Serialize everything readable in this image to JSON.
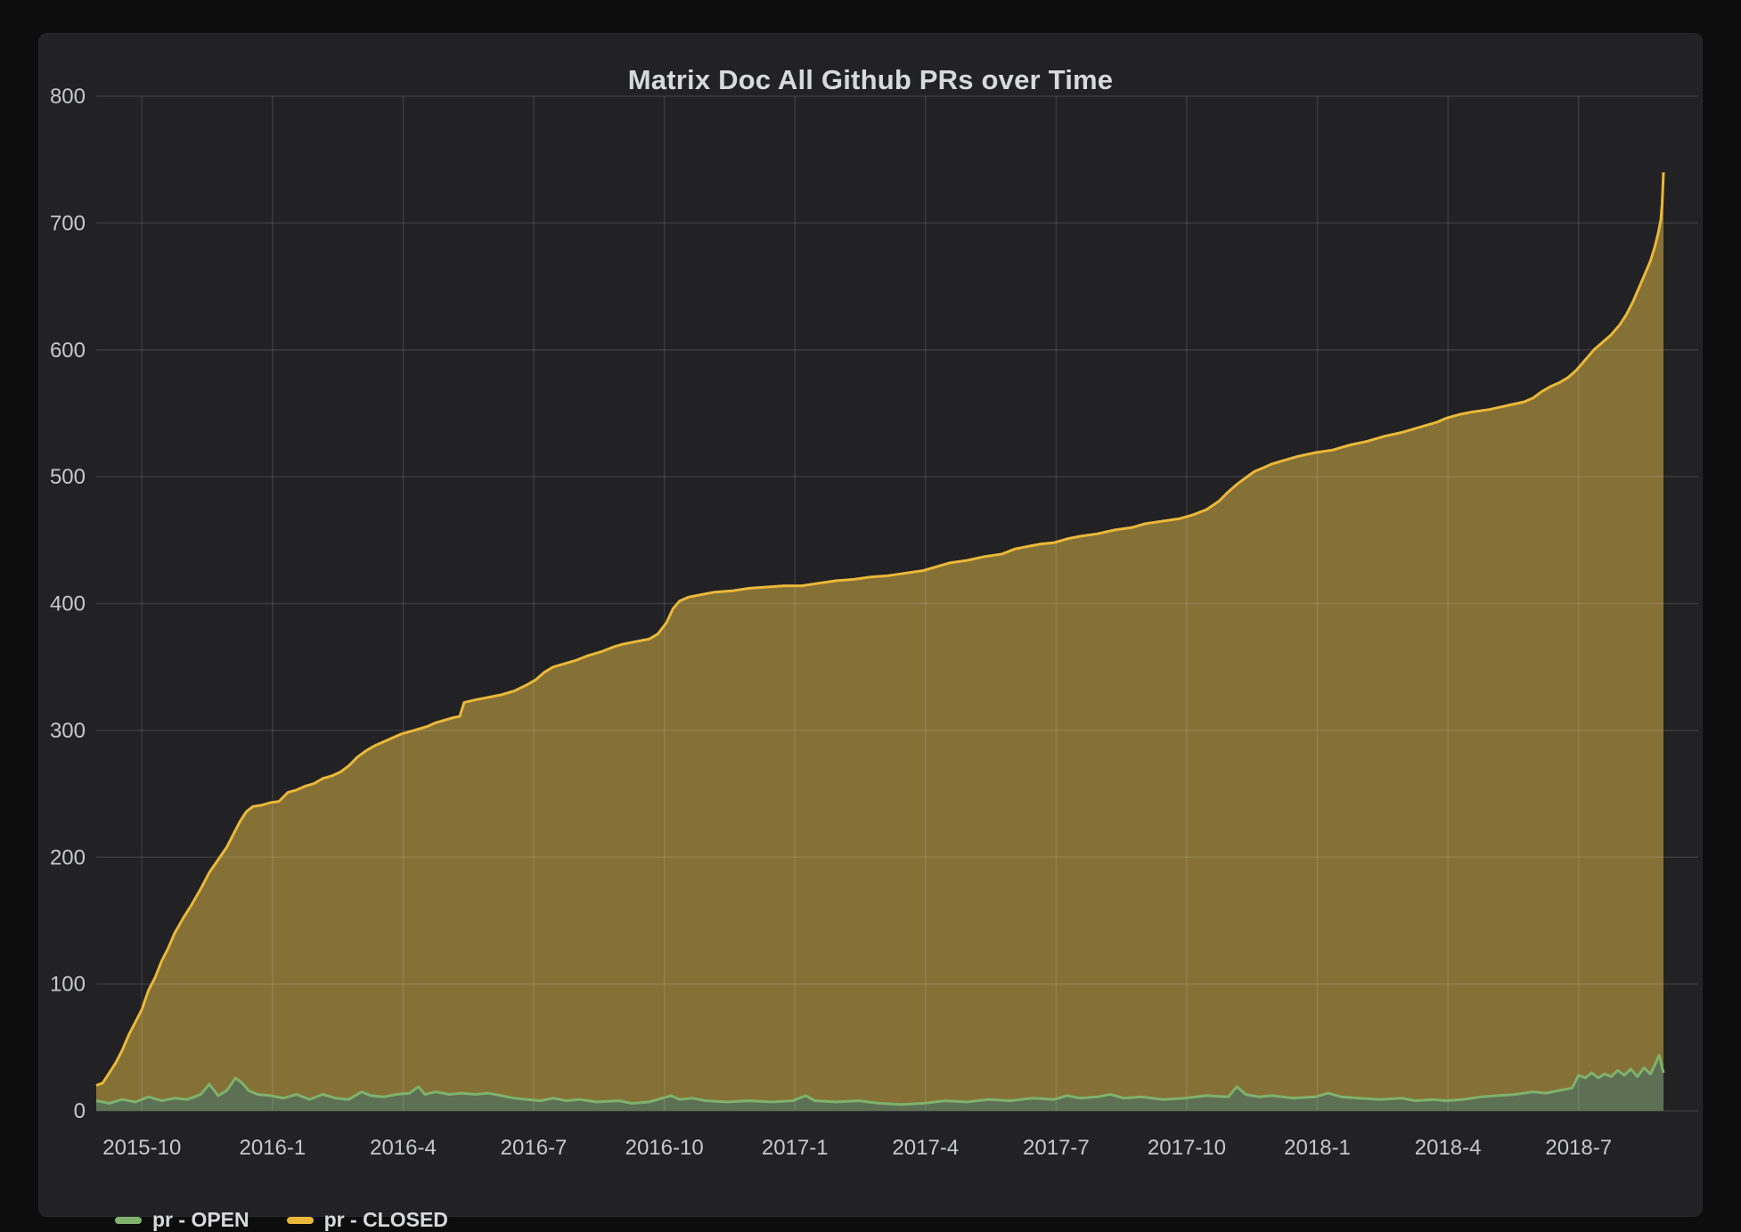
{
  "panel": {
    "title": "Matrix Doc All Github PRs over Time"
  },
  "legend": [
    {
      "label": "pr - OPEN",
      "color": "#7eb26d"
    },
    {
      "label": "pr - CLOSED",
      "color": "#eab839"
    }
  ],
  "colors": {
    "page_bg": "#0d0d0e",
    "panel_bg": "#222224",
    "grid": "rgba(255,255,255,0.11)",
    "axis_text": "#c7c8ca",
    "title_text": "#d8d9da"
  },
  "chart_data": {
    "type": "area",
    "title": "Matrix Doc All Github PRs over Time",
    "xlabel": "",
    "ylabel": "",
    "grid": true,
    "legend_position": "bottom-left",
    "ylim": [
      0,
      800
    ],
    "y_ticks": [
      0,
      100,
      200,
      300,
      400,
      500,
      600,
      700,
      800
    ],
    "x_unit": "months since data start (2015-09)",
    "x_range_months": [
      0,
      36
    ],
    "x_tick_labels": [
      "2015-10",
      "2016-1",
      "2016-4",
      "2016-7",
      "2016-10",
      "2017-1",
      "2017-4",
      "2017-7",
      "2017-10",
      "2018-1",
      "2018-4",
      "2018-7"
    ],
    "x_tick_month_offsets": [
      1.05,
      4.05,
      7.05,
      10.05,
      13.05,
      16.05,
      19.05,
      22.05,
      25.05,
      28.05,
      31.05,
      34.05
    ],
    "series": [
      {
        "name": "pr - CLOSED",
        "line_color": "#eab839",
        "fill_color": "#857036",
        "points": [
          [
            0,
            20
          ],
          [
            0.15,
            22
          ],
          [
            0.3,
            30
          ],
          [
            0.45,
            38
          ],
          [
            0.6,
            48
          ],
          [
            0.75,
            60
          ],
          [
            0.9,
            70
          ],
          [
            1.05,
            80
          ],
          [
            1.2,
            95
          ],
          [
            1.35,
            105
          ],
          [
            1.5,
            118
          ],
          [
            1.65,
            128
          ],
          [
            1.8,
            140
          ],
          [
            2.0,
            152
          ],
          [
            2.2,
            163
          ],
          [
            2.4,
            175
          ],
          [
            2.6,
            188
          ],
          [
            2.8,
            198
          ],
          [
            3.0,
            208
          ],
          [
            3.15,
            218
          ],
          [
            3.3,
            228
          ],
          [
            3.45,
            236
          ],
          [
            3.6,
            240
          ],
          [
            3.8,
            241
          ],
          [
            4.0,
            243
          ],
          [
            4.2,
            244
          ],
          [
            4.4,
            251
          ],
          [
            4.6,
            253
          ],
          [
            4.8,
            256
          ],
          [
            5.0,
            258
          ],
          [
            5.2,
            262
          ],
          [
            5.4,
            264
          ],
          [
            5.6,
            267
          ],
          [
            5.8,
            272
          ],
          [
            6.0,
            279
          ],
          [
            6.2,
            284
          ],
          [
            6.4,
            288
          ],
          [
            6.6,
            291
          ],
          [
            6.8,
            294
          ],
          [
            7.0,
            297
          ],
          [
            7.2,
            299
          ],
          [
            7.4,
            301
          ],
          [
            7.6,
            303
          ],
          [
            7.8,
            306
          ],
          [
            8.0,
            308
          ],
          [
            8.2,
            310
          ],
          [
            8.35,
            311
          ],
          [
            8.45,
            322
          ],
          [
            8.7,
            324
          ],
          [
            9.0,
            326
          ],
          [
            9.3,
            328
          ],
          [
            9.6,
            331
          ],
          [
            9.9,
            336
          ],
          [
            10.1,
            340
          ],
          [
            10.3,
            346
          ],
          [
            10.5,
            350
          ],
          [
            10.8,
            353
          ],
          [
            11.0,
            355
          ],
          [
            11.3,
            359
          ],
          [
            11.6,
            362
          ],
          [
            11.9,
            366
          ],
          [
            12.1,
            368
          ],
          [
            12.4,
            370
          ],
          [
            12.7,
            372
          ],
          [
            12.9,
            376
          ],
          [
            13.1,
            385
          ],
          [
            13.25,
            396
          ],
          [
            13.4,
            402
          ],
          [
            13.6,
            405
          ],
          [
            13.9,
            407
          ],
          [
            14.2,
            409
          ],
          [
            14.6,
            410
          ],
          [
            15.0,
            412
          ],
          [
            15.4,
            413
          ],
          [
            15.8,
            414
          ],
          [
            16.2,
            414
          ],
          [
            16.6,
            416
          ],
          [
            17.0,
            418
          ],
          [
            17.4,
            419
          ],
          [
            17.8,
            421
          ],
          [
            18.2,
            422
          ],
          [
            18.6,
            424
          ],
          [
            19.0,
            426
          ],
          [
            19.3,
            429
          ],
          [
            19.6,
            432
          ],
          [
            20.0,
            434
          ],
          [
            20.4,
            437
          ],
          [
            20.8,
            439
          ],
          [
            21.1,
            443
          ],
          [
            21.4,
            445
          ],
          [
            21.7,
            447
          ],
          [
            22.0,
            448
          ],
          [
            22.3,
            451
          ],
          [
            22.6,
            453
          ],
          [
            23.0,
            455
          ],
          [
            23.4,
            458
          ],
          [
            23.8,
            460
          ],
          [
            24.1,
            463
          ],
          [
            24.5,
            465
          ],
          [
            24.9,
            467
          ],
          [
            25.2,
            470
          ],
          [
            25.5,
            474
          ],
          [
            25.8,
            481
          ],
          [
            26.0,
            488
          ],
          [
            26.2,
            494
          ],
          [
            26.4,
            499
          ],
          [
            26.6,
            504
          ],
          [
            26.8,
            507
          ],
          [
            27.0,
            510
          ],
          [
            27.3,
            513
          ],
          [
            27.6,
            516
          ],
          [
            28.0,
            519
          ],
          [
            28.4,
            521
          ],
          [
            28.8,
            525
          ],
          [
            29.2,
            528
          ],
          [
            29.6,
            532
          ],
          [
            30.0,
            535
          ],
          [
            30.4,
            539
          ],
          [
            30.8,
            543
          ],
          [
            31.0,
            546
          ],
          [
            31.3,
            549
          ],
          [
            31.6,
            551
          ],
          [
            32.0,
            553
          ],
          [
            32.4,
            556
          ],
          [
            32.8,
            559
          ],
          [
            33.0,
            562
          ],
          [
            33.2,
            567
          ],
          [
            33.4,
            571
          ],
          [
            33.6,
            574
          ],
          [
            33.8,
            578
          ],
          [
            34.0,
            584
          ],
          [
            34.2,
            592
          ],
          [
            34.4,
            600
          ],
          [
            34.6,
            606
          ],
          [
            34.8,
            612
          ],
          [
            35.0,
            620
          ],
          [
            35.15,
            628
          ],
          [
            35.3,
            638
          ],
          [
            35.45,
            650
          ],
          [
            35.6,
            662
          ],
          [
            35.7,
            670
          ],
          [
            35.8,
            681
          ],
          [
            35.88,
            692
          ],
          [
            35.94,
            703
          ],
          [
            35.97,
            715
          ],
          [
            36.0,
            740
          ]
        ]
      },
      {
        "name": "pr - OPEN",
        "line_color": "#7eb26d",
        "fill_color": "#5e7053",
        "points": [
          [
            0,
            8
          ],
          [
            0.3,
            6
          ],
          [
            0.6,
            9
          ],
          [
            0.9,
            7
          ],
          [
            1.2,
            11
          ],
          [
            1.5,
            8
          ],
          [
            1.8,
            10
          ],
          [
            2.1,
            9
          ],
          [
            2.4,
            13
          ],
          [
            2.6,
            21
          ],
          [
            2.8,
            12
          ],
          [
            3.0,
            16
          ],
          [
            3.2,
            26
          ],
          [
            3.35,
            22
          ],
          [
            3.5,
            16
          ],
          [
            3.7,
            13
          ],
          [
            4.0,
            12
          ],
          [
            4.3,
            10
          ],
          [
            4.6,
            13
          ],
          [
            4.9,
            9
          ],
          [
            5.2,
            13
          ],
          [
            5.5,
            10
          ],
          [
            5.8,
            9
          ],
          [
            6.1,
            15
          ],
          [
            6.3,
            12
          ],
          [
            6.6,
            11
          ],
          [
            6.9,
            13
          ],
          [
            7.2,
            14
          ],
          [
            7.4,
            19
          ],
          [
            7.55,
            13
          ],
          [
            7.8,
            15
          ],
          [
            8.1,
            13
          ],
          [
            8.4,
            14
          ],
          [
            8.7,
            13
          ],
          [
            9.0,
            14
          ],
          [
            9.3,
            12
          ],
          [
            9.6,
            10
          ],
          [
            9.9,
            9
          ],
          [
            10.2,
            8
          ],
          [
            10.5,
            10
          ],
          [
            10.8,
            8
          ],
          [
            11.1,
            9
          ],
          [
            11.5,
            7
          ],
          [
            12.0,
            8
          ],
          [
            12.3,
            6
          ],
          [
            12.7,
            7
          ],
          [
            13.0,
            10
          ],
          [
            13.2,
            12
          ],
          [
            13.4,
            9
          ],
          [
            13.7,
            10
          ],
          [
            14.0,
            8
          ],
          [
            14.5,
            7
          ],
          [
            15.0,
            8
          ],
          [
            15.5,
            7
          ],
          [
            16.0,
            8
          ],
          [
            16.3,
            12
          ],
          [
            16.5,
            8
          ],
          [
            17.0,
            7
          ],
          [
            17.5,
            8
          ],
          [
            18.0,
            6
          ],
          [
            18.5,
            5
          ],
          [
            19.0,
            6
          ],
          [
            19.5,
            8
          ],
          [
            20.0,
            7
          ],
          [
            20.5,
            9
          ],
          [
            21.0,
            8
          ],
          [
            21.5,
            10
          ],
          [
            22.0,
            9
          ],
          [
            22.3,
            12
          ],
          [
            22.6,
            10
          ],
          [
            23.0,
            11
          ],
          [
            23.3,
            13
          ],
          [
            23.6,
            10
          ],
          [
            24.0,
            11
          ],
          [
            24.5,
            9
          ],
          [
            25.0,
            10
          ],
          [
            25.5,
            12
          ],
          [
            26.0,
            11
          ],
          [
            26.2,
            19
          ],
          [
            26.4,
            13
          ],
          [
            26.7,
            11
          ],
          [
            27.0,
            12
          ],
          [
            27.5,
            10
          ],
          [
            28.0,
            11
          ],
          [
            28.3,
            14
          ],
          [
            28.6,
            11
          ],
          [
            29.0,
            10
          ],
          [
            29.5,
            9
          ],
          [
            30.0,
            10
          ],
          [
            30.3,
            8
          ],
          [
            30.7,
            9
          ],
          [
            31.0,
            8
          ],
          [
            31.4,
            9
          ],
          [
            31.8,
            11
          ],
          [
            32.2,
            12
          ],
          [
            32.6,
            13
          ],
          [
            33.0,
            15
          ],
          [
            33.3,
            14
          ],
          [
            33.6,
            16
          ],
          [
            33.9,
            18
          ],
          [
            34.05,
            28
          ],
          [
            34.2,
            26
          ],
          [
            34.35,
            30
          ],
          [
            34.5,
            26
          ],
          [
            34.65,
            29
          ],
          [
            34.8,
            27
          ],
          [
            34.95,
            32
          ],
          [
            35.1,
            28
          ],
          [
            35.25,
            33
          ],
          [
            35.4,
            27
          ],
          [
            35.55,
            34
          ],
          [
            35.7,
            29
          ],
          [
            35.8,
            36
          ],
          [
            35.9,
            44
          ],
          [
            36.0,
            30
          ]
        ]
      }
    ]
  }
}
